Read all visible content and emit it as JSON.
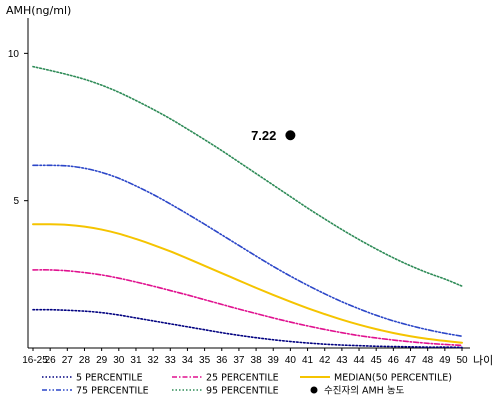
{
  "chart_data": {
    "type": "line",
    "ylabel": "AMH(ng/ml)",
    "xlabel": "나이",
    "ylim": [
      0,
      11.2
    ],
    "y_ticks": [
      5,
      10
    ],
    "y_tick_labels": [
      "5",
      "10"
    ],
    "x": [
      "16-25",
      "26",
      "27",
      "28",
      "29",
      "30",
      "31",
      "32",
      "33",
      "34",
      "35",
      "36",
      "37",
      "38",
      "39",
      "40",
      "41",
      "42",
      "43",
      "44",
      "45",
      "46",
      "47",
      "48",
      "49",
      "50"
    ],
    "series": [
      {
        "name": "5 PERCENTILE",
        "color": "#000080",
        "dash": "dot",
        "values": [
          1.3,
          1.3,
          1.28,
          1.25,
          1.2,
          1.12,
          1.02,
          0.92,
          0.82,
          0.72,
          0.62,
          0.52,
          0.43,
          0.35,
          0.28,
          0.22,
          0.17,
          0.13,
          0.1,
          0.08,
          0.06,
          0.05,
          0.04,
          0.03,
          0.03,
          0.02
        ]
      },
      {
        "name": "25 PERCENTILE",
        "color": "#e0118f",
        "dash": "dashdot",
        "values": [
          2.65,
          2.65,
          2.62,
          2.56,
          2.48,
          2.37,
          2.24,
          2.1,
          1.95,
          1.8,
          1.64,
          1.48,
          1.32,
          1.17,
          1.02,
          0.88,
          0.75,
          0.63,
          0.52,
          0.42,
          0.34,
          0.27,
          0.21,
          0.16,
          0.12,
          0.09
        ]
      },
      {
        "name": "MEDIAN(50 PERCENTILE)",
        "color": "#f5c400",
        "dash": "solid",
        "values": [
          4.2,
          4.2,
          4.18,
          4.12,
          4.02,
          3.88,
          3.7,
          3.5,
          3.28,
          3.04,
          2.79,
          2.54,
          2.29,
          2.04,
          1.8,
          1.57,
          1.35,
          1.15,
          0.96,
          0.79,
          0.64,
          0.51,
          0.4,
          0.31,
          0.24,
          0.18
        ]
      },
      {
        "name": "75 PERCENTILE",
        "color": "#2b46c8",
        "dash": "dashdotdot",
        "values": [
          6.2,
          6.2,
          6.18,
          6.1,
          5.96,
          5.76,
          5.5,
          5.21,
          4.89,
          4.55,
          4.2,
          3.84,
          3.48,
          3.12,
          2.77,
          2.44,
          2.13,
          1.84,
          1.57,
          1.33,
          1.11,
          0.92,
          0.76,
          0.62,
          0.5,
          0.4
        ]
      },
      {
        "name": "95 PERCENTILE",
        "color": "#2e8b57",
        "dash": "dot",
        "values": [
          9.55,
          9.42,
          9.28,
          9.12,
          8.92,
          8.68,
          8.4,
          8.1,
          7.78,
          7.43,
          7.07,
          6.7,
          6.31,
          5.92,
          5.53,
          5.14,
          4.75,
          4.38,
          4.02,
          3.68,
          3.36,
          3.06,
          2.79,
          2.55,
          2.34,
          2.1
        ]
      }
    ],
    "patient": {
      "label": "수진자의 AMH 농도",
      "x": "40",
      "value": 7.22,
      "value_label": "7.22",
      "color": "#000000"
    },
    "legend_position": "bottom",
    "grid": false
  }
}
